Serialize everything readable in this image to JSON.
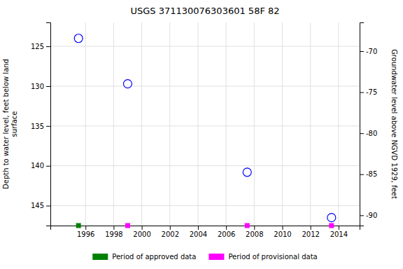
{
  "chart_data": {
    "type": "scatter",
    "title": "USGS 371130076303601 58F 82",
    "y_label": "Depth to water level, feet below land\nsurface",
    "y2_label": "Groundwater level above NGVD 1929, feet",
    "series": [
      {
        "color": "#0000ff",
        "marker": "circle",
        "x": [
          1995.5,
          1999.0,
          2007.5,
          2013.5
        ],
        "values": [
          124.0,
          129.7,
          140.8,
          146.5
        ]
      },
      {
        "name": "Period of approved data",
        "type": "rug",
        "color": "#008000",
        "marker": "square",
        "x": [
          1995.5
        ]
      },
      {
        "name": "Period of provisional data",
        "type": "rug",
        "color": "#ff00ff",
        "marker": "square",
        "x": [
          1999.0,
          2007.5,
          2013.5
        ]
      }
    ],
    "xlim": [
      1993.5,
      2015.5
    ],
    "xticks": [
      1996,
      1998,
      2000,
      2002,
      2004,
      2006,
      2008,
      2010,
      2012,
      2014
    ],
    "ylim": [
      147.5,
      122.0
    ],
    "yticks": [
      125,
      130,
      135,
      140,
      145
    ],
    "y2lim": [
      -91.25,
      -66.5
    ],
    "y2ticks": [
      -70,
      -75,
      -80,
      -85,
      -90
    ],
    "grid": true,
    "legend": "bottom"
  }
}
